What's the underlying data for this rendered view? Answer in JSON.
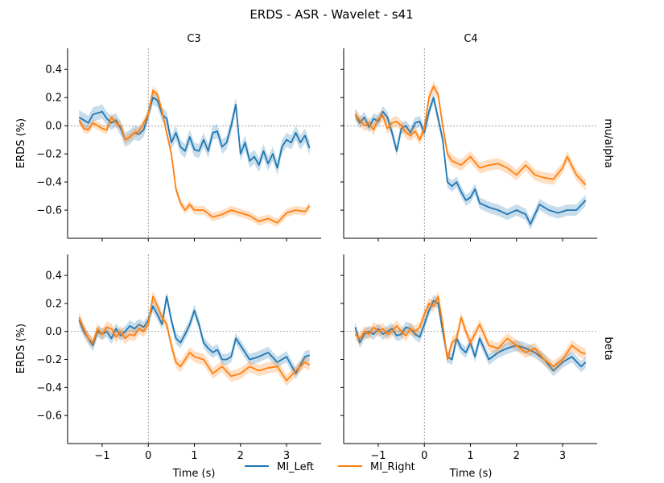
{
  "chart_data": {
    "type": "line",
    "suptitle": "ERDS - ASR - Wavelet - s41",
    "columns": [
      "C3",
      "C4"
    ],
    "rows": [
      "mu/alpha",
      "beta"
    ],
    "xlabel": "Time (s)",
    "ylabel": "ERDS (%)",
    "xlim": [
      -1.75,
      3.75
    ],
    "ylim": [
      -0.8,
      0.55
    ],
    "xticks": [
      -1,
      0,
      1,
      2,
      3
    ],
    "yticks": [
      0.4,
      0.2,
      0.0,
      -0.2,
      -0.4,
      -0.6
    ],
    "xtick_labels": [
      "−1",
      "0",
      "1",
      "2",
      "3"
    ],
    "ytick_labels": [
      "0.4",
      "0.2",
      "0.0",
      "−0.2",
      "−0.4",
      "−0.6"
    ],
    "reference_lines": {
      "x": 0,
      "y": 0
    },
    "legend": {
      "position": "bottom-center",
      "entries": [
        {
          "name": "MI_Left",
          "color": "#1f77b4"
        },
        {
          "name": "MI_Right",
          "color": "#ff7f0e"
        }
      ]
    },
    "panels": [
      {
        "column": "C3",
        "row": "mu/alpha",
        "series": [
          {
            "name": "MI_Left",
            "color": "#1f77b4",
            "x": [
              -1.5,
              -1.3,
              -1.2,
              -1.0,
              -0.9,
              -0.8,
              -0.7,
              -0.6,
              -0.5,
              -0.4,
              -0.3,
              -0.2,
              -0.1,
              0.0,
              0.1,
              0.2,
              0.3,
              0.4,
              0.5,
              0.6,
              0.7,
              0.8,
              0.9,
              1.0,
              1.1,
              1.2,
              1.3,
              1.4,
              1.5,
              1.6,
              1.7,
              1.8,
              1.9,
              2.0,
              2.1,
              2.2,
              2.3,
              2.4,
              2.5,
              2.6,
              2.7,
              2.8,
              2.9,
              3.0,
              3.1,
              3.2,
              3.3,
              3.4,
              3.5
            ],
            "y": [
              0.06,
              0.02,
              0.08,
              0.1,
              0.05,
              0.02,
              0.04,
              -0.02,
              -0.1,
              -0.08,
              -0.05,
              -0.06,
              -0.03,
              0.08,
              0.2,
              0.18,
              0.08,
              0.05,
              -0.12,
              -0.05,
              -0.15,
              -0.18,
              -0.08,
              -0.17,
              -0.18,
              -0.1,
              -0.18,
              -0.05,
              -0.04,
              -0.15,
              -0.12,
              0.0,
              0.15,
              -0.2,
              -0.12,
              -0.25,
              -0.22,
              -0.28,
              -0.18,
              -0.27,
              -0.2,
              -0.3,
              -0.15,
              -0.1,
              -0.12,
              -0.05,
              -0.12,
              -0.07,
              -0.16
            ],
            "band": 0.05
          },
          {
            "name": "MI_Right",
            "color": "#ff7f0e",
            "x": [
              -1.5,
              -1.4,
              -1.3,
              -1.2,
              -1.0,
              -0.9,
              -0.8,
              -0.7,
              -0.6,
              -0.5,
              -0.4,
              -0.3,
              -0.2,
              -0.1,
              0.0,
              0.1,
              0.2,
              0.3,
              0.4,
              0.5,
              0.6,
              0.7,
              0.8,
              0.9,
              1.0,
              1.2,
              1.4,
              1.6,
              1.8,
              2.0,
              2.2,
              2.4,
              2.6,
              2.8,
              3.0,
              3.2,
              3.4,
              3.5
            ],
            "y": [
              0.04,
              -0.02,
              -0.03,
              0.02,
              -0.02,
              -0.03,
              0.06,
              0.02,
              0.0,
              -0.1,
              -0.08,
              -0.05,
              -0.04,
              0.02,
              0.08,
              0.25,
              0.22,
              0.1,
              -0.05,
              -0.2,
              -0.45,
              -0.55,
              -0.6,
              -0.56,
              -0.6,
              -0.6,
              -0.65,
              -0.63,
              -0.6,
              -0.62,
              -0.64,
              -0.68,
              -0.66,
              -0.69,
              -0.62,
              -0.6,
              -0.61,
              -0.57
            ],
            "band": 0.03
          }
        ]
      },
      {
        "column": "C4",
        "row": "mu/alpha",
        "series": [
          {
            "name": "MI_Left",
            "color": "#1f77b4",
            "x": [
              -1.5,
              -1.4,
              -1.3,
              -1.2,
              -1.1,
              -1.0,
              -0.9,
              -0.8,
              -0.7,
              -0.6,
              -0.5,
              -0.4,
              -0.3,
              -0.2,
              -0.1,
              0.0,
              0.1,
              0.2,
              0.3,
              0.4,
              0.5,
              0.6,
              0.7,
              0.8,
              0.9,
              1.0,
              1.1,
              1.2,
              1.4,
              1.6,
              1.8,
              2.0,
              2.2,
              2.3,
              2.5,
              2.7,
              2.9,
              3.1,
              3.3,
              3.5
            ],
            "y": [
              0.08,
              0.02,
              0.06,
              -0.01,
              0.05,
              0.03,
              0.1,
              0.06,
              -0.05,
              -0.18,
              -0.02,
              0.0,
              -0.05,
              0.02,
              0.03,
              -0.05,
              0.1,
              0.2,
              0.05,
              -0.1,
              -0.4,
              -0.43,
              -0.4,
              -0.47,
              -0.53,
              -0.51,
              -0.45,
              -0.55,
              -0.58,
              -0.6,
              -0.63,
              -0.6,
              -0.63,
              -0.7,
              -0.56,
              -0.6,
              -0.62,
              -0.6,
              -0.6,
              -0.53
            ],
            "band": 0.04
          },
          {
            "name": "MI_Right",
            "color": "#ff7f0e",
            "x": [
              -1.5,
              -1.4,
              -1.3,
              -1.2,
              -1.1,
              -1.0,
              -0.9,
              -0.8,
              -0.7,
              -0.6,
              -0.5,
              -0.4,
              -0.3,
              -0.2,
              -0.1,
              0.0,
              0.1,
              0.2,
              0.3,
              0.4,
              0.5,
              0.6,
              0.8,
              1.0,
              1.2,
              1.4,
              1.6,
              1.8,
              2.0,
              2.2,
              2.4,
              2.6,
              2.8,
              3.0,
              3.1,
              3.3,
              3.5
            ],
            "y": [
              0.08,
              0.04,
              0.0,
              0.02,
              -0.03,
              0.05,
              0.07,
              -0.02,
              0.02,
              0.03,
              0.0,
              -0.05,
              -0.07,
              -0.04,
              -0.1,
              -0.02,
              0.2,
              0.28,
              0.22,
              0.0,
              -0.2,
              -0.25,
              -0.28,
              -0.22,
              -0.3,
              -0.28,
              -0.27,
              -0.3,
              -0.35,
              -0.28,
              -0.35,
              -0.37,
              -0.38,
              -0.3,
              -0.22,
              -0.35,
              -0.42
            ],
            "band": 0.04
          }
        ]
      },
      {
        "column": "C3",
        "row": "beta",
        "series": [
          {
            "name": "MI_Left",
            "color": "#1f77b4",
            "x": [
              -1.5,
              -1.4,
              -1.3,
              -1.2,
              -1.1,
              -1.0,
              -0.9,
              -0.8,
              -0.7,
              -0.6,
              -0.5,
              -0.4,
              -0.3,
              -0.2,
              -0.1,
              0.0,
              0.1,
              0.2,
              0.3,
              0.4,
              0.5,
              0.6,
              0.7,
              0.8,
              0.9,
              1.0,
              1.1,
              1.2,
              1.3,
              1.4,
              1.5,
              1.6,
              1.7,
              1.8,
              1.9,
              2.0,
              2.2,
              2.4,
              2.6,
              2.8,
              3.0,
              3.2,
              3.4,
              3.5
            ],
            "y": [
              0.08,
              0.0,
              -0.05,
              -0.1,
              0.0,
              -0.02,
              0.0,
              -0.05,
              0.02,
              -0.03,
              0.0,
              0.04,
              0.02,
              0.05,
              0.03,
              0.08,
              0.18,
              0.12,
              0.05,
              0.25,
              0.08,
              -0.05,
              -0.08,
              -0.02,
              0.05,
              0.15,
              0.05,
              -0.08,
              -0.12,
              -0.15,
              -0.13,
              -0.2,
              -0.2,
              -0.18,
              -0.05,
              -0.1,
              -0.2,
              -0.18,
              -0.15,
              -0.22,
              -0.18,
              -0.3,
              -0.18,
              -0.17
            ],
            "band": 0.04
          },
          {
            "name": "MI_Right",
            "color": "#ff7f0e",
            "x": [
              -1.5,
              -1.4,
              -1.3,
              -1.2,
              -1.1,
              -1.0,
              -0.9,
              -0.8,
              -0.7,
              -0.6,
              -0.5,
              -0.4,
              -0.3,
              -0.2,
              -0.1,
              0.0,
              0.1,
              0.2,
              0.3,
              0.4,
              0.5,
              0.6,
              0.7,
              0.8,
              0.9,
              1.0,
              1.2,
              1.4,
              1.6,
              1.8,
              2.0,
              2.2,
              2.4,
              2.6,
              2.8,
              3.0,
              3.2,
              3.4,
              3.5
            ],
            "y": [
              0.1,
              0.02,
              -0.05,
              -0.08,
              0.02,
              -0.02,
              0.03,
              0.02,
              -0.04,
              0.0,
              -0.05,
              -0.02,
              -0.03,
              0.02,
              0.0,
              0.05,
              0.25,
              0.18,
              0.1,
              0.05,
              -0.1,
              -0.22,
              -0.25,
              -0.2,
              -0.15,
              -0.18,
              -0.2,
              -0.3,
              -0.25,
              -0.32,
              -0.3,
              -0.25,
              -0.28,
              -0.26,
              -0.25,
              -0.35,
              -0.28,
              -0.22,
              -0.24
            ],
            "band": 0.04
          }
        ]
      },
      {
        "column": "C4",
        "row": "beta",
        "series": [
          {
            "name": "MI_Left",
            "color": "#1f77b4",
            "x": [
              -1.5,
              -1.4,
              -1.3,
              -1.2,
              -1.1,
              -1.0,
              -0.9,
              -0.8,
              -0.7,
              -0.6,
              -0.5,
              -0.4,
              -0.3,
              -0.2,
              -0.1,
              0.0,
              0.1,
              0.2,
              0.3,
              0.4,
              0.5,
              0.6,
              0.7,
              0.8,
              0.9,
              1.0,
              1.1,
              1.2,
              1.4,
              1.6,
              1.8,
              2.0,
              2.2,
              2.4,
              2.6,
              2.8,
              3.0,
              3.2,
              3.4,
              3.5
            ],
            "y": [
              0.03,
              -0.08,
              -0.02,
              0.0,
              -0.02,
              0.02,
              -0.02,
              0.0,
              0.02,
              -0.03,
              -0.02,
              0.03,
              0.02,
              -0.02,
              -0.04,
              0.05,
              0.15,
              0.22,
              0.2,
              0.0,
              -0.18,
              -0.2,
              -0.05,
              -0.12,
              -0.15,
              -0.08,
              -0.18,
              -0.05,
              -0.2,
              -0.15,
              -0.12,
              -0.1,
              -0.12,
              -0.15,
              -0.2,
              -0.28,
              -0.22,
              -0.18,
              -0.25,
              -0.22
            ],
            "band": 0.04
          },
          {
            "name": "MI_Right",
            "color": "#ff7f0e",
            "x": [
              -1.5,
              -1.4,
              -1.3,
              -1.2,
              -1.1,
              -1.0,
              -0.9,
              -0.8,
              -0.7,
              -0.6,
              -0.5,
              -0.4,
              -0.3,
              -0.2,
              -0.1,
              0.0,
              0.1,
              0.2,
              0.3,
              0.4,
              0.5,
              0.6,
              0.7,
              0.8,
              0.9,
              1.0,
              1.2,
              1.4,
              1.6,
              1.8,
              2.0,
              2.2,
              2.4,
              2.6,
              2.8,
              3.0,
              3.2,
              3.4,
              3.5
            ],
            "y": [
              -0.02,
              -0.05,
              0.0,
              -0.02,
              0.03,
              0.0,
              0.02,
              -0.02,
              0.0,
              0.04,
              0.0,
              -0.03,
              0.02,
              0.0,
              0.03,
              0.12,
              0.2,
              0.18,
              0.25,
              0.05,
              -0.2,
              -0.08,
              -0.05,
              0.1,
              0.0,
              -0.08,
              0.05,
              -0.1,
              -0.12,
              -0.05,
              -0.1,
              -0.15,
              -0.12,
              -0.2,
              -0.25,
              -0.2,
              -0.1,
              -0.15,
              -0.16
            ],
            "band": 0.04
          }
        ]
      }
    ]
  }
}
